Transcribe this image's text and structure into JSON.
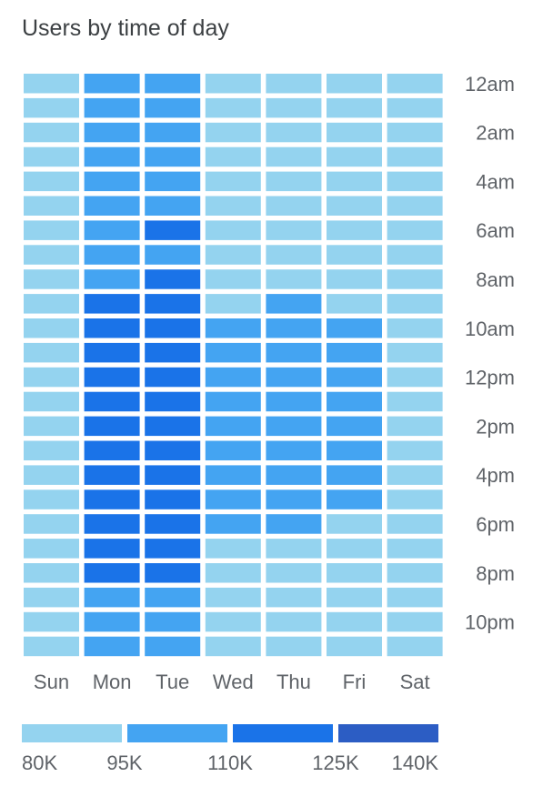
{
  "chart_data": {
    "type": "heatmap",
    "title": "Users by time of day",
    "x_categories": [
      "Sun",
      "Mon",
      "Tue",
      "Wed",
      "Thu",
      "Fri",
      "Sat"
    ],
    "y_categories": [
      "12am",
      "1am",
      "2am",
      "3am",
      "4am",
      "5am",
      "6am",
      "7am",
      "8am",
      "9am",
      "10am",
      "11am",
      "12pm",
      "1pm",
      "2pm",
      "3pm",
      "4pm",
      "5pm",
      "6pm",
      "7pm",
      "8pm",
      "9pm",
      "10pm",
      "11pm"
    ],
    "y_tick_labels": [
      "12am",
      "2am",
      "4am",
      "6am",
      "8am",
      "10am",
      "12pm",
      "2pm",
      "4pm",
      "6pm",
      "8pm",
      "10pm"
    ],
    "values": [
      [
        88,
        100,
        100,
        88,
        88,
        88,
        88
      ],
      [
        88,
        100,
        100,
        88,
        88,
        88,
        88
      ],
      [
        88,
        100,
        100,
        88,
        88,
        88,
        88
      ],
      [
        88,
        100,
        100,
        88,
        88,
        88,
        88
      ],
      [
        88,
        100,
        100,
        88,
        88,
        88,
        88
      ],
      [
        88,
        100,
        100,
        88,
        88,
        88,
        88
      ],
      [
        88,
        100,
        116,
        88,
        88,
        88,
        88
      ],
      [
        88,
        100,
        100,
        88,
        88,
        88,
        88
      ],
      [
        88,
        100,
        116,
        88,
        88,
        88,
        88
      ],
      [
        88,
        116,
        116,
        88,
        100,
        88,
        88
      ],
      [
        88,
        116,
        116,
        100,
        100,
        100,
        88
      ],
      [
        88,
        116,
        116,
        100,
        100,
        100,
        88
      ],
      [
        88,
        116,
        116,
        100,
        100,
        100,
        88
      ],
      [
        88,
        116,
        116,
        100,
        100,
        100,
        88
      ],
      [
        88,
        116,
        116,
        100,
        100,
        100,
        88
      ],
      [
        88,
        116,
        116,
        100,
        100,
        100,
        88
      ],
      [
        88,
        116,
        116,
        100,
        100,
        100,
        88
      ],
      [
        88,
        116,
        116,
        100,
        100,
        100,
        88
      ],
      [
        88,
        116,
        116,
        100,
        100,
        88,
        88
      ],
      [
        88,
        116,
        116,
        88,
        88,
        88,
        88
      ],
      [
        88,
        116,
        116,
        88,
        88,
        88,
        88
      ],
      [
        88,
        100,
        100,
        88,
        88,
        88,
        88
      ],
      [
        88,
        100,
        100,
        88,
        88,
        88,
        88
      ],
      [
        88,
        100,
        100,
        88,
        88,
        88,
        88
      ]
    ],
    "legend": {
      "bins": [
        {
          "min": 80,
          "max": 95,
          "color": "#94d3ef"
        },
        {
          "min": 95,
          "max": 110,
          "color": "#44a4f2"
        },
        {
          "min": 110,
          "max": 125,
          "color": "#1a73e8"
        },
        {
          "min": 125,
          "max": 140,
          "color": "#2c5dc4"
        }
      ],
      "labels": [
        "80K",
        "95K",
        "110K",
        "125K",
        "140K"
      ],
      "placement": "bottom"
    },
    "value_unit": "K",
    "grid": false
  }
}
